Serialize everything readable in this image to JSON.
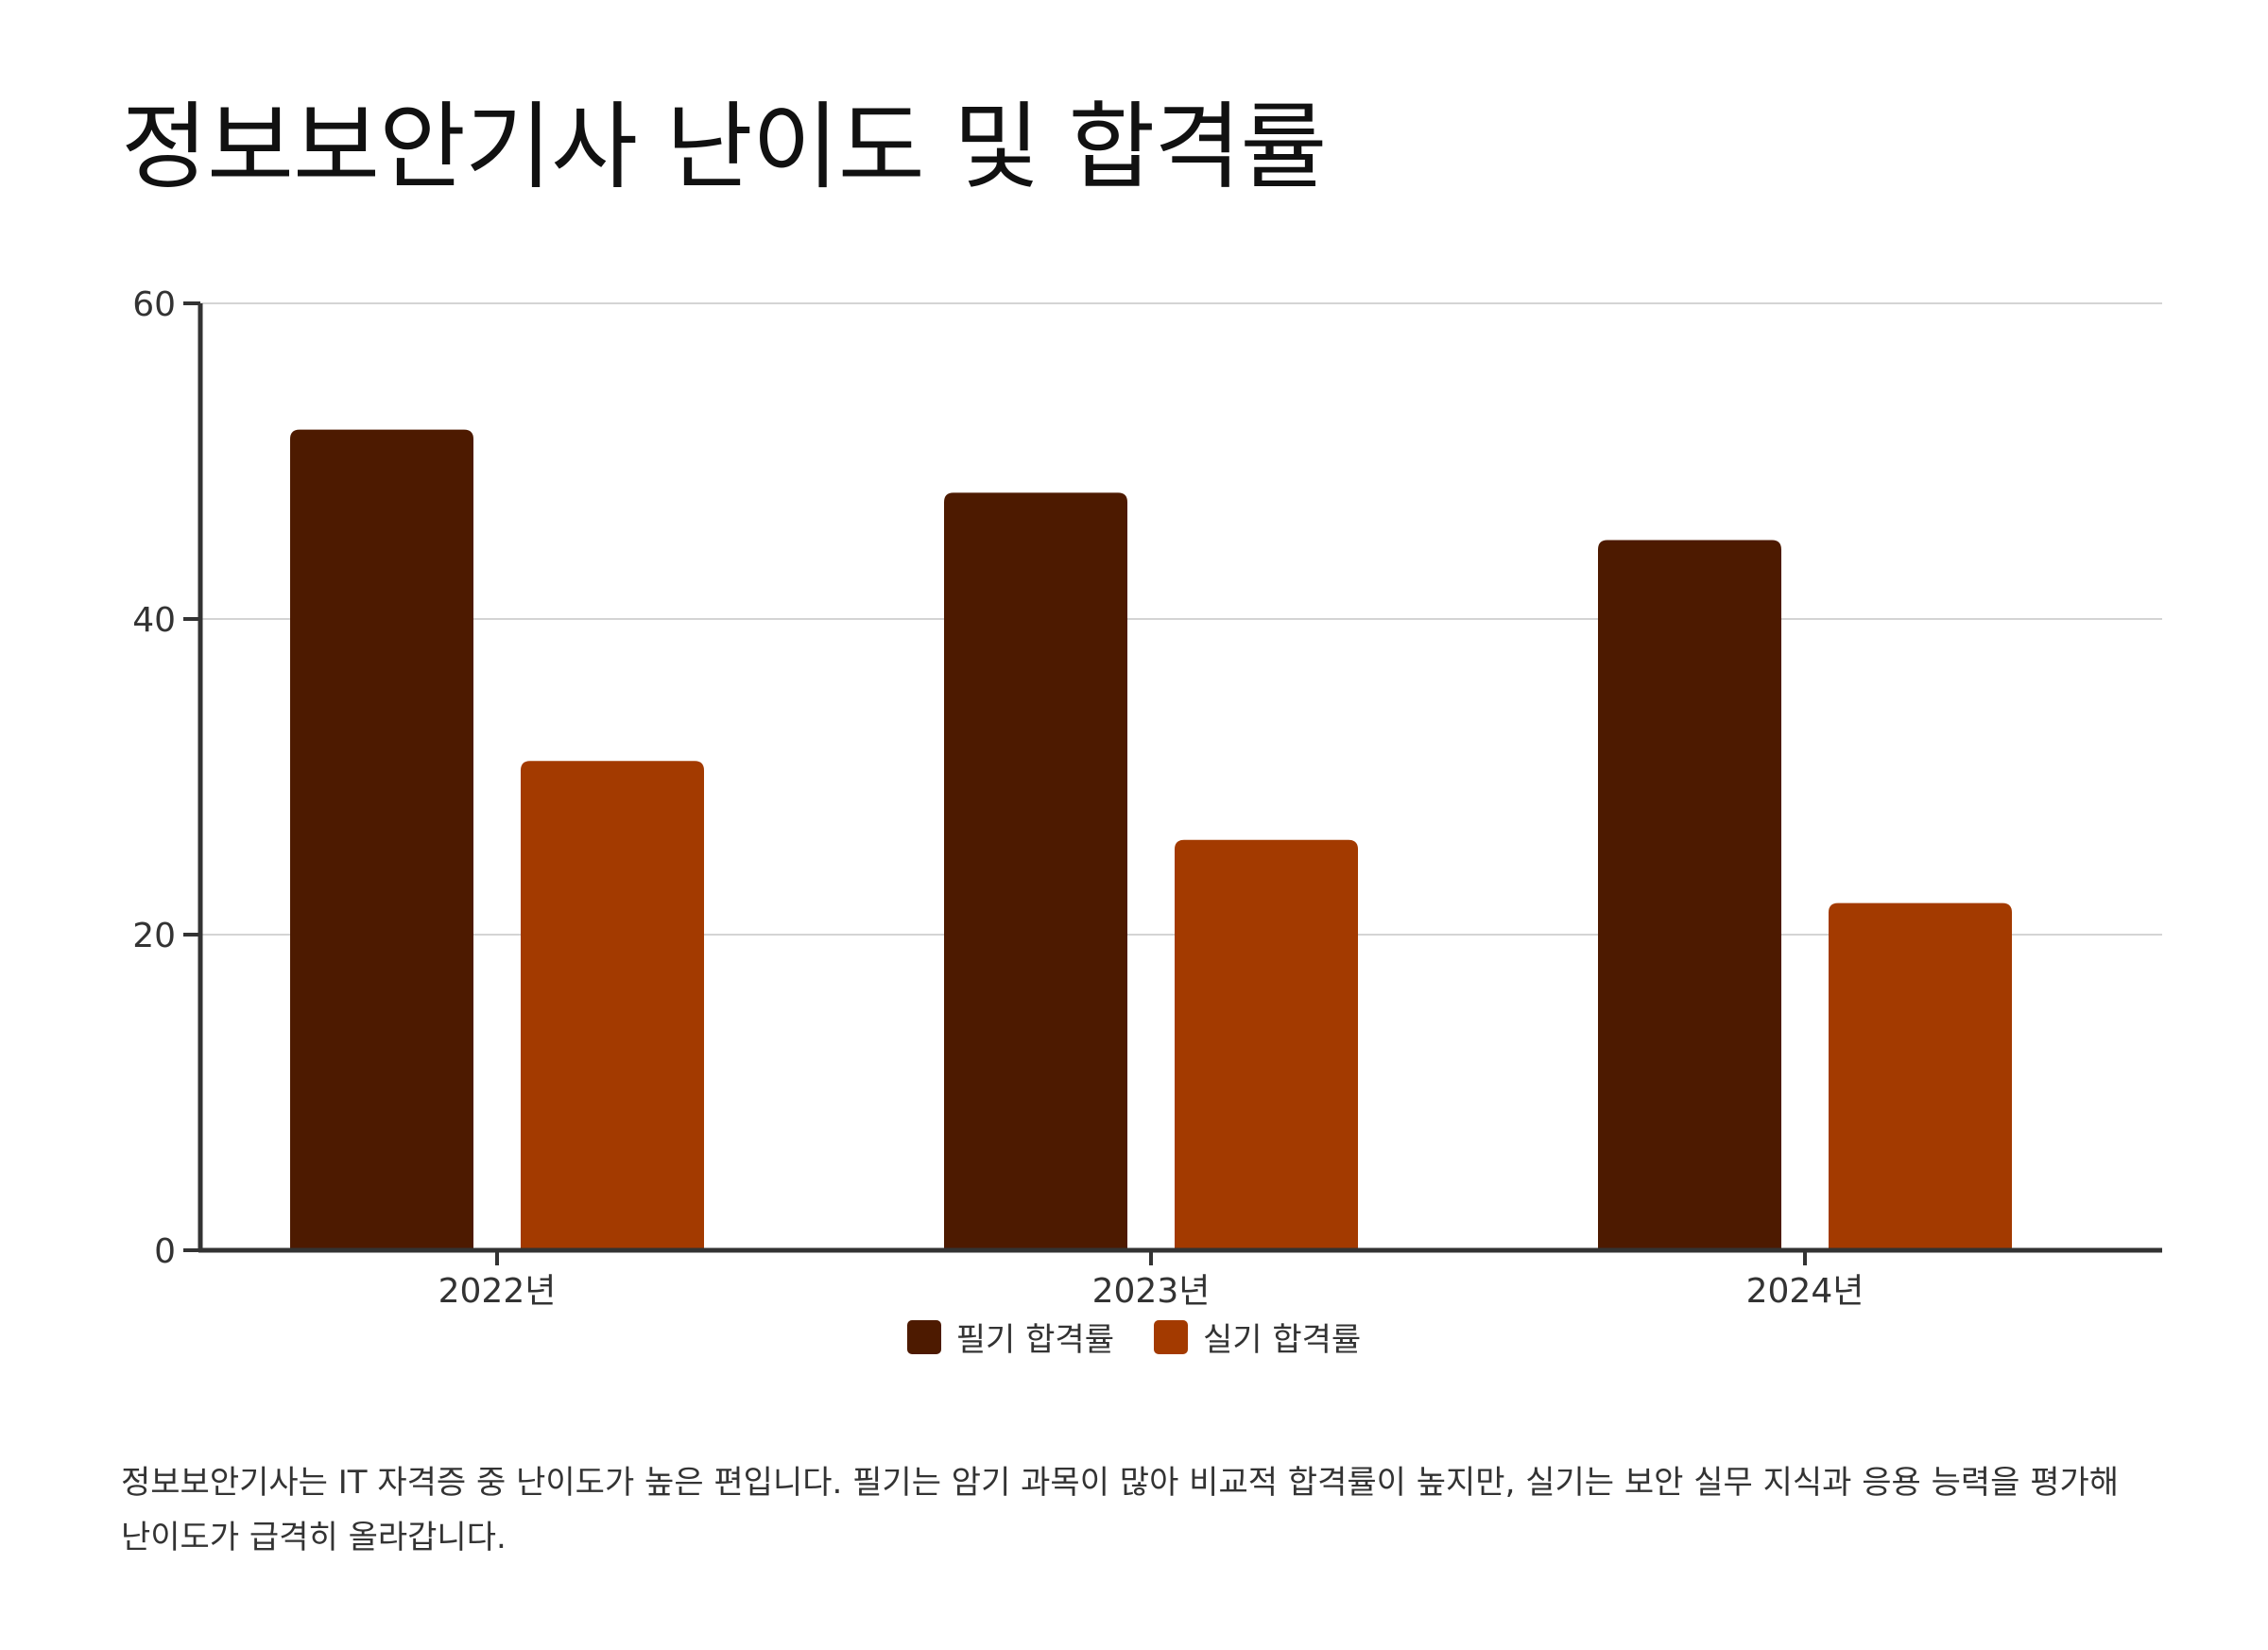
{
  "title": "정보보안기사 난이도 및 합격률",
  "description": "정보보안기사는 IT 자격증 중 난이도가 높은 편입니다. 필기는 암기 과목이 많아 비교적 합격률이 높지만, 실기는 보안 실무 지식과 응용 능력을 평가해 난이도가 급격히 올라갑니다.",
  "chart_data": {
    "type": "bar",
    "title": "정보보안기사 난이도 및 합격률",
    "xlabel": "",
    "ylabel": "",
    "categories": [
      "2022년",
      "2023년",
      "2024년"
    ],
    "series": [
      {
        "name": "필기 합격률",
        "color": "#4d1a00",
        "values": [
          52,
          48,
          45
        ]
      },
      {
        "name": "실기 합격률",
        "color": "#a33a00",
        "values": [
          31,
          26,
          22
        ]
      }
    ],
    "ylim": [
      0,
      60
    ],
    "yticks": [
      0,
      20,
      40,
      60
    ],
    "grid": true,
    "legend_position": "bottom-center"
  }
}
